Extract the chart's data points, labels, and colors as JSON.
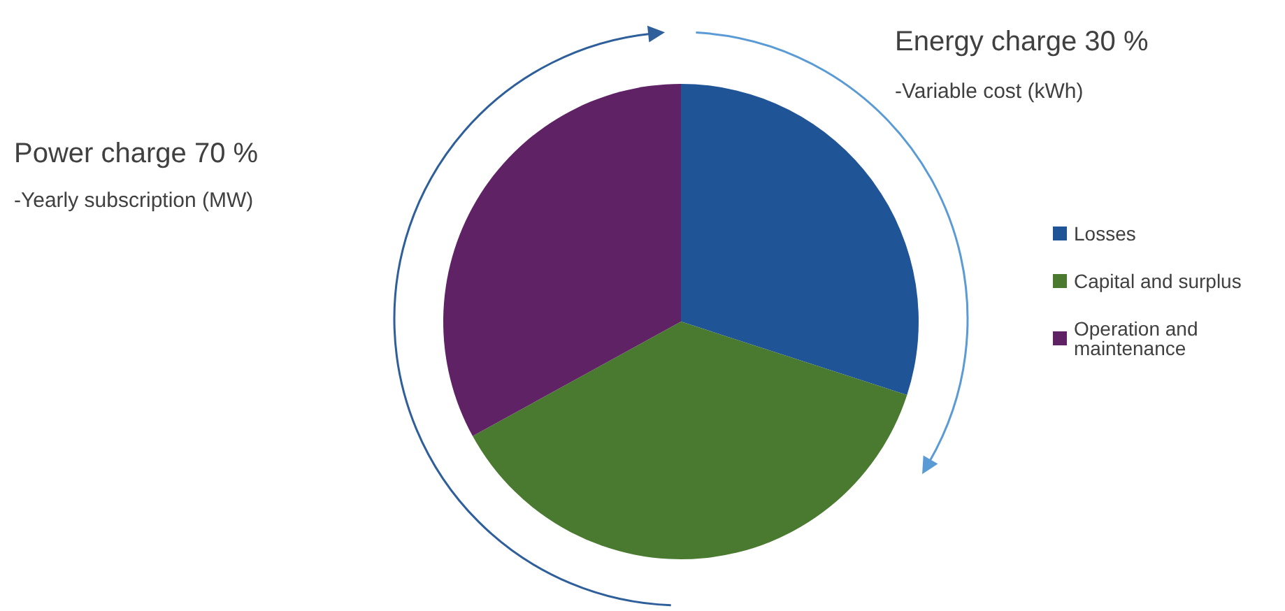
{
  "chart_data": {
    "type": "pie",
    "categories": [
      "Losses",
      "Capital and surplus",
      "Operation and maintenance"
    ],
    "values": [
      30,
      37,
      33
    ],
    "colors": [
      "#1f5597",
      "#4a7a30",
      "#5e2265"
    ],
    "legend": "right",
    "annotations": [
      "Energy charge 30 %",
      "-Variable cost (kWh)",
      "Power charge 70 %",
      "-Yearly subscription (MW)"
    ]
  }
}
